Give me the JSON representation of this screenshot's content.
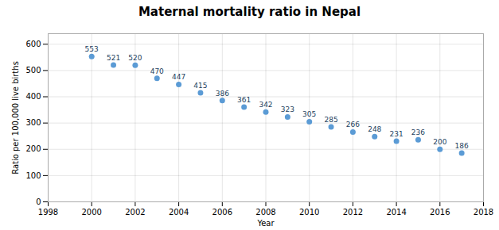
{
  "chart_data": {
    "type": "scatter",
    "title": "Maternal mortality ratio in Nepal",
    "xlabel": "Year",
    "ylabel": "Ratio per 100,000 live births",
    "x": [
      2000,
      2001,
      2002,
      2003,
      2004,
      2005,
      2006,
      2007,
      2008,
      2009,
      2010,
      2011,
      2012,
      2013,
      2014,
      2015,
      2016,
      2017
    ],
    "values": [
      553,
      521,
      520,
      470,
      447,
      415,
      386,
      361,
      342,
      323,
      305,
      285,
      266,
      248,
      231,
      236,
      200,
      186
    ],
    "color": "#5B9BD5",
    "xlim": [
      1998,
      2018
    ],
    "xticks": [
      1998,
      2000,
      2002,
      2004,
      2006,
      2008,
      2010,
      2012,
      2014,
      2016,
      2018
    ],
    "ylim": [
      0,
      640
    ],
    "yticks": [
      0,
      100,
      200,
      300,
      400,
      500,
      600
    ],
    "grid": true,
    "data_labels": true
  }
}
